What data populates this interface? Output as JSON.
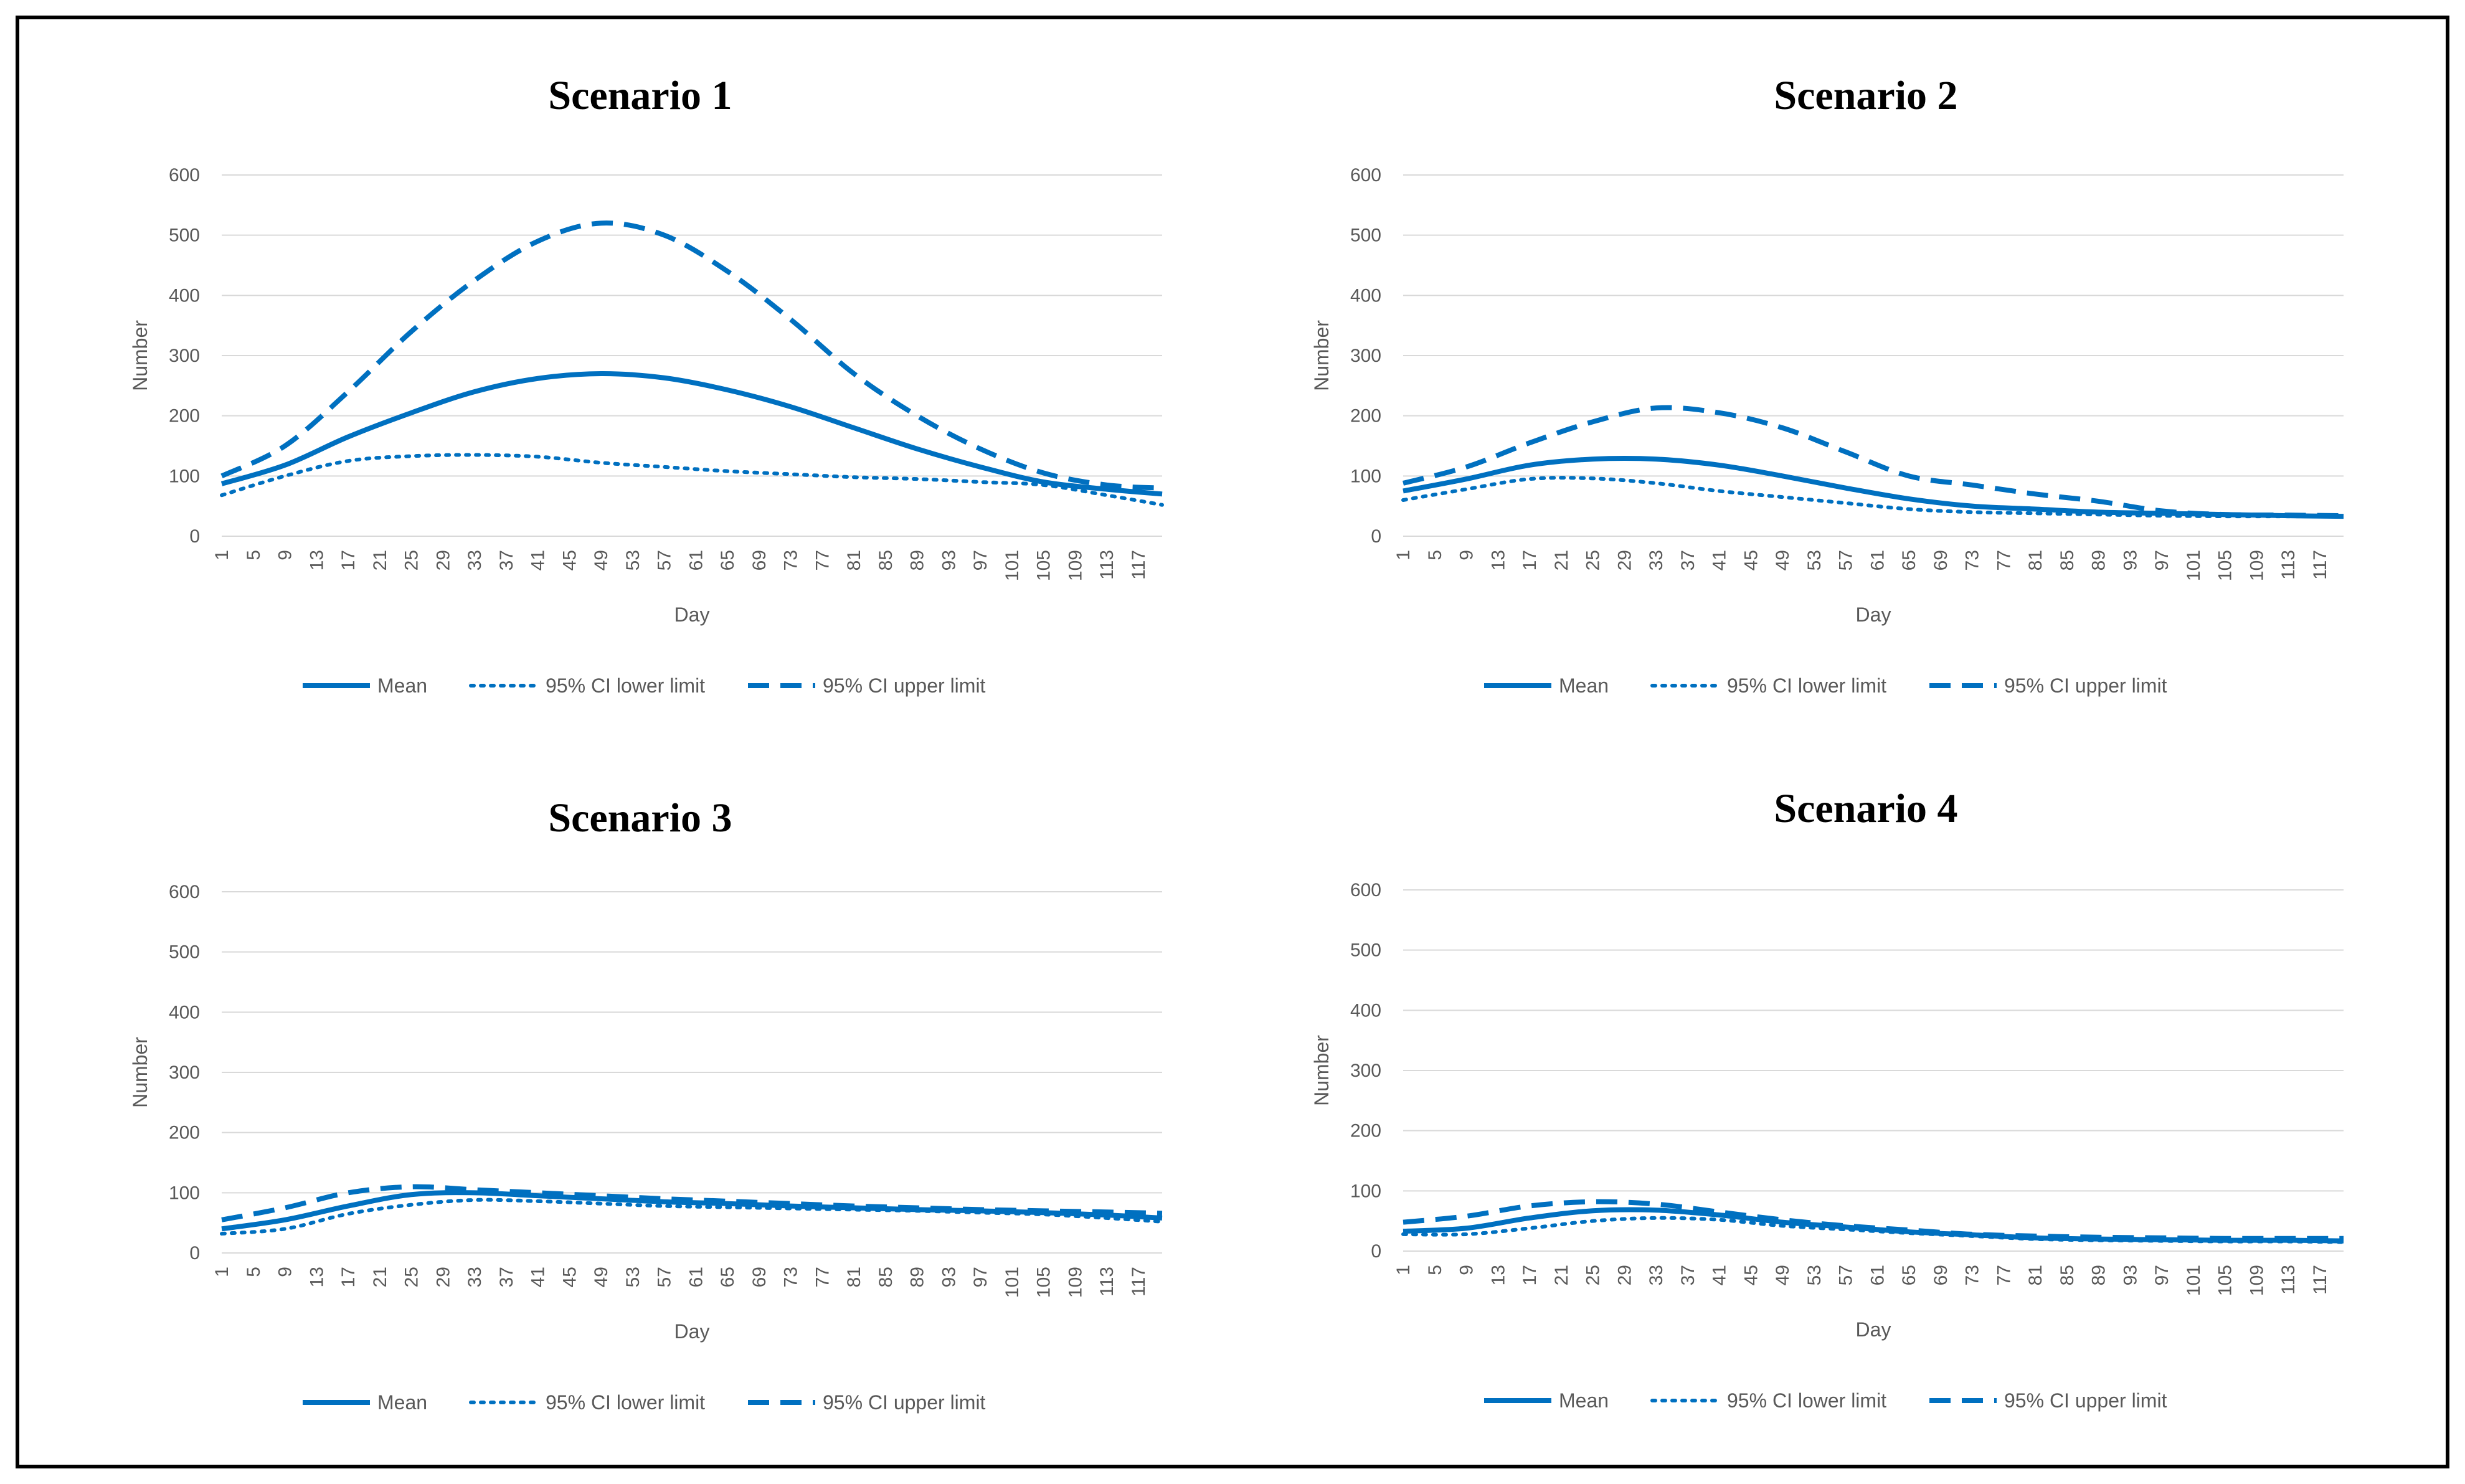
{
  "chart_data": [
    {
      "type": "line",
      "title": "Scenario 1",
      "xlabel": "Day",
      "ylabel": "Number",
      "ylim": [
        0,
        600
      ],
      "yticks": [
        "0",
        "100",
        "200",
        "300",
        "400",
        "500",
        "600"
      ],
      "xticks": [
        "1",
        "5",
        "9",
        "13",
        "17",
        "21",
        "25",
        "29",
        "33",
        "37",
        "41",
        "45",
        "49",
        "53",
        "57",
        "61",
        "65",
        "69",
        "73",
        "77",
        "81",
        "85",
        "89",
        "93",
        "97",
        "101",
        "105",
        "109",
        "113",
        "117"
      ],
      "x": [
        1,
        9,
        17,
        25,
        33,
        41,
        49,
        57,
        65,
        73,
        81,
        89,
        97,
        105,
        113,
        120
      ],
      "legend": [
        "Mean",
        "95% CI lower limit",
        "95% CI upper limit"
      ],
      "series": [
        {
          "name": "Mean",
          "style": "solid",
          "values": [
            87,
            118,
            165,
            205,
            240,
            262,
            270,
            263,
            243,
            215,
            180,
            145,
            115,
            90,
            78,
            70
          ]
        },
        {
          "name": "95% CI lower limit",
          "style": "dotted",
          "values": [
            68,
            100,
            125,
            133,
            135,
            132,
            122,
            115,
            108,
            103,
            98,
            95,
            90,
            85,
            68,
            52
          ]
        },
        {
          "name": "95% CI upper limit",
          "style": "dashed",
          "values": [
            100,
            150,
            240,
            340,
            425,
            490,
            520,
            500,
            440,
            360,
            270,
            200,
            145,
            105,
            85,
            80
          ]
        }
      ]
    },
    {
      "type": "line",
      "title": "Scenario 2",
      "xlabel": "Day",
      "ylabel": "Number",
      "ylim": [
        0,
        600
      ],
      "yticks": [
        "0",
        "100",
        "200",
        "300",
        "400",
        "500",
        "600"
      ],
      "xticks": [
        "1",
        "5",
        "9",
        "13",
        "17",
        "21",
        "25",
        "29",
        "33",
        "37",
        "41",
        "45",
        "49",
        "53",
        "57",
        "61",
        "65",
        "69",
        "73",
        "77",
        "81",
        "85",
        "89",
        "93",
        "97",
        "101",
        "105",
        "109",
        "113",
        "117"
      ],
      "x": [
        1,
        9,
        17,
        25,
        33,
        41,
        49,
        57,
        65,
        73,
        81,
        89,
        97,
        105,
        113,
        120
      ],
      "legend": [
        "Mean",
        "95% CI lower limit",
        "95% CI upper limit"
      ],
      "series": [
        {
          "name": "Mean",
          "style": "solid",
          "values": [
            75,
            95,
            118,
            128,
            128,
            118,
            100,
            80,
            62,
            50,
            45,
            40,
            38,
            36,
            34,
            33
          ]
        },
        {
          "name": "95% CI lower limit",
          "style": "dotted",
          "values": [
            60,
            78,
            95,
            96,
            88,
            75,
            65,
            55,
            45,
            40,
            38,
            36,
            34,
            33,
            33,
            33
          ]
        },
        {
          "name": "95% CI upper limit",
          "style": "dashed",
          "values": [
            88,
            115,
            155,
            190,
            213,
            205,
            180,
            140,
            100,
            85,
            70,
            58,
            42,
            36,
            35,
            34
          ]
        }
      ]
    },
    {
      "type": "line",
      "title": "Scenario 3",
      "xlabel": "Day",
      "ylabel": "Number",
      "ylim": [
        0,
        600
      ],
      "yticks": [
        "0",
        "100",
        "200",
        "300",
        "400",
        "500",
        "600"
      ],
      "xticks": [
        "1",
        "5",
        "9",
        "13",
        "17",
        "21",
        "25",
        "29",
        "33",
        "37",
        "41",
        "45",
        "49",
        "53",
        "57",
        "61",
        "65",
        "69",
        "73",
        "77",
        "81",
        "85",
        "89",
        "93",
        "97",
        "101",
        "105",
        "109",
        "113",
        "117"
      ],
      "x": [
        1,
        9,
        17,
        25,
        33,
        41,
        49,
        57,
        65,
        73,
        81,
        89,
        97,
        105,
        113,
        120
      ],
      "legend": [
        "Mean",
        "95% CI lower limit",
        "95% CI upper limit"
      ],
      "series": [
        {
          "name": "Mean",
          "style": "solid",
          "values": [
            40,
            55,
            78,
            97,
            100,
            95,
            90,
            85,
            82,
            78,
            75,
            72,
            70,
            67,
            63,
            58
          ]
        },
        {
          "name": "95% CI lower limit",
          "style": "dotted",
          "values": [
            32,
            40,
            65,
            80,
            88,
            86,
            82,
            78,
            76,
            74,
            72,
            70,
            67,
            64,
            58,
            52
          ]
        },
        {
          "name": "95% CI upper limit",
          "style": "dashed",
          "values": [
            55,
            75,
            100,
            110,
            105,
            100,
            95,
            90,
            86,
            82,
            78,
            75,
            72,
            70,
            68,
            66
          ]
        }
      ]
    },
    {
      "type": "line",
      "title": "Scenario 4",
      "xlabel": "Day",
      "ylabel": "Number",
      "ylim": [
        0,
        600
      ],
      "yticks": [
        "0",
        "100",
        "200",
        "300",
        "400",
        "500",
        "600"
      ],
      "xticks": [
        "1",
        "5",
        "9",
        "13",
        "17",
        "21",
        "25",
        "29",
        "33",
        "37",
        "41",
        "45",
        "49",
        "53",
        "57",
        "61",
        "65",
        "69",
        "73",
        "77",
        "81",
        "85",
        "89",
        "93",
        "97",
        "101",
        "105",
        "109",
        "113",
        "117"
      ],
      "x": [
        1,
        9,
        17,
        25,
        33,
        41,
        49,
        57,
        65,
        73,
        81,
        89,
        97,
        105,
        113,
        120
      ],
      "legend": [
        "Mean",
        "95% CI lower limit",
        "95% CI upper limit"
      ],
      "series": [
        {
          "name": "Mean",
          "style": "solid",
          "values": [
            33,
            38,
            55,
            67,
            68,
            60,
            48,
            40,
            32,
            27,
            22,
            20,
            19,
            18,
            18,
            17
          ]
        },
        {
          "name": "95% CI lower limit",
          "style": "dotted",
          "values": [
            28,
            28,
            38,
            50,
            55,
            52,
            42,
            36,
            30,
            25,
            20,
            18,
            17,
            16,
            16,
            15
          ]
        },
        {
          "name": "95% CI upper limit",
          "style": "dashed",
          "values": [
            48,
            58,
            75,
            82,
            78,
            65,
            52,
            42,
            35,
            28,
            25,
            23,
            22,
            21,
            21,
            21
          ]
        }
      ]
    }
  ],
  "colors": {
    "line": "#0070c0",
    "grid": "#d9d9d9",
    "text": "#595959"
  }
}
